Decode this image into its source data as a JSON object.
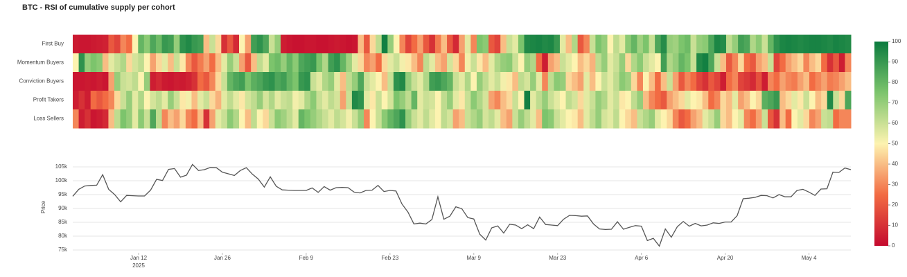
{
  "title": "BTC - RSI of cumulative supply per cohort",
  "chart_data": [
    {
      "type": "heatmap",
      "y": [
        "First Buy",
        "Momentum Buyers",
        "Conviction Buyers",
        "Profit Takers",
        "Loss Sellers"
      ],
      "colors": [
        "#c40a2e",
        "#f26b43",
        "#fdf3b0",
        "#7cc46c",
        "#0a7a3e"
      ],
      "zlim": [
        0,
        100
      ],
      "zticks": [
        0,
        10,
        20,
        30,
        40,
        50,
        60,
        70,
        80,
        90,
        100
      ],
      "z": [
        [
          4,
          3,
          3,
          4,
          5,
          6,
          20,
          15,
          30,
          25,
          50,
          80,
          72,
          85,
          78,
          90,
          88,
          70,
          92,
          95,
          90,
          88,
          40,
          60,
          45,
          10,
          20,
          8,
          50,
          35,
          88,
          92,
          85,
          60,
          70,
          5,
          3,
          2,
          2,
          3,
          3,
          2,
          2,
          3,
          4,
          3,
          2,
          3,
          40,
          20,
          45,
          62,
          98,
          70,
          50,
          30,
          15,
          25,
          35,
          20,
          10,
          28,
          40,
          20,
          8,
          35,
          55,
          30,
          75,
          72,
          20,
          15,
          40,
          60,
          55,
          75,
          95,
          96,
          97,
          95,
          96,
          90,
          55,
          40,
          65,
          20,
          30,
          60,
          75,
          70,
          50,
          62,
          55,
          72,
          80,
          68,
          75,
          60,
          85,
          94,
          70,
          68,
          75,
          78,
          60,
          70,
          72,
          85,
          96,
          94,
          62,
          70,
          88,
          85,
          65,
          72,
          60,
          80,
          92,
          96,
          97,
          96,
          95,
          96,
          97,
          97,
          96,
          95,
          97,
          96,
          95
        ],
        [
          50,
          92,
          70,
          75,
          72,
          40,
          55,
          60,
          65,
          45,
          58,
          62,
          50,
          35,
          45,
          55,
          40,
          60,
          48,
          30,
          20,
          28,
          35,
          25,
          40,
          55,
          70,
          60,
          35,
          20,
          40,
          62,
          55,
          75,
          78,
          70,
          80,
          72,
          85,
          88,
          90,
          75,
          65,
          88,
          92,
          80,
          68,
          55,
          45,
          30,
          35,
          25,
          45,
          55,
          60,
          52,
          48,
          40,
          30,
          62,
          55,
          40,
          35,
          58,
          45,
          30,
          52,
          60,
          48,
          40,
          55,
          65,
          70,
          72,
          60,
          50,
          70,
          65,
          25,
          5,
          35,
          40,
          60,
          55,
          50,
          40,
          45,
          38,
          62,
          70,
          55,
          60,
          70,
          45,
          65,
          72,
          60,
          55,
          50,
          88,
          65,
          70,
          80,
          75,
          60,
          95,
          98,
          85,
          60,
          40,
          20,
          30,
          45,
          25,
          20,
          35,
          40,
          60,
          15,
          25,
          35,
          40,
          45,
          30,
          40,
          45,
          25,
          10,
          20,
          5,
          30
        ],
        [
          3,
          3,
          4,
          3,
          5,
          3,
          35,
          70,
          60,
          58,
          62,
          50,
          70,
          5,
          8,
          4,
          3,
          5,
          4,
          6,
          10,
          25,
          20,
          30,
          45,
          60,
          80,
          85,
          88,
          75,
          82,
          85,
          90,
          92,
          85,
          88,
          80,
          75,
          90,
          92,
          60,
          55,
          65,
          70,
          55,
          40,
          62,
          70,
          85,
          60,
          55,
          50,
          40,
          60,
          92,
          95,
          70,
          60,
          55,
          65,
          88,
          90,
          85,
          80,
          60,
          55,
          65,
          50,
          70,
          62,
          55,
          60,
          52,
          48,
          40,
          62,
          58,
          70,
          55,
          30,
          62,
          72,
          70,
          45,
          40,
          35,
          55,
          40,
          50,
          60,
          55,
          62,
          72,
          68,
          45,
          30,
          50,
          40,
          25,
          40,
          60,
          35,
          20,
          30,
          25,
          15,
          10,
          20,
          15,
          5,
          25,
          30,
          15,
          12,
          8,
          18,
          5,
          30,
          25,
          35,
          30,
          28,
          35,
          40,
          25,
          30,
          35,
          28,
          30,
          35,
          40
        ],
        [
          5,
          10,
          5,
          25,
          20,
          25,
          30,
          45,
          60,
          70,
          55,
          65,
          50,
          58,
          62,
          55,
          70,
          60,
          48,
          52,
          40,
          55,
          60,
          45,
          38,
          55,
          62,
          55,
          48,
          58,
          62,
          70,
          58,
          65,
          55,
          60,
          62,
          52,
          55,
          65,
          72,
          60,
          55,
          62,
          58,
          35,
          60,
          95,
          92,
          55,
          48,
          60,
          50,
          58,
          75,
          70,
          62,
          80,
          55,
          60,
          58,
          50,
          62,
          70,
          55,
          48,
          60,
          72,
          65,
          58,
          35,
          30,
          40,
          45,
          60,
          50,
          98,
          55,
          62,
          70,
          60,
          55,
          50,
          62,
          58,
          45,
          55,
          60,
          70,
          65,
          55,
          60,
          48,
          50,
          62,
          70,
          40,
          30,
          25,
          20,
          35,
          40,
          45,
          55,
          50,
          48,
          40,
          25,
          30,
          45,
          40,
          55,
          35,
          40,
          50,
          45,
          82,
          85,
          90,
          40,
          45,
          55,
          48,
          60,
          50,
          40,
          45,
          95,
          60,
          45,
          85
        ],
        [
          30,
          5,
          10,
          3,
          5,
          8,
          40,
          62,
          75,
          70,
          55,
          72,
          60,
          85,
          62,
          30,
          40,
          35,
          45,
          30,
          25,
          40,
          10,
          35,
          55,
          60,
          72,
          65,
          50,
          40,
          62,
          50,
          45,
          60,
          72,
          68,
          62,
          55,
          80,
          75,
          70,
          65,
          60,
          55,
          62,
          58,
          52,
          60,
          70,
          30,
          50,
          60,
          72,
          80,
          85,
          92,
          70,
          60,
          55,
          62,
          55,
          50,
          62,
          58,
          35,
          40,
          60,
          65,
          70,
          58,
          62,
          55,
          40,
          35,
          60,
          70,
          62,
          55,
          40,
          75,
          72,
          60,
          55,
          50,
          48,
          40,
          55,
          62,
          70,
          58,
          55,
          62,
          50,
          45,
          40,
          60,
          65,
          70,
          55,
          50,
          45,
          30,
          20,
          25,
          35,
          40,
          55,
          60,
          70,
          45,
          40,
          50,
          55,
          30,
          25,
          35,
          60,
          20,
          10,
          40,
          25,
          50,
          55,
          45,
          30,
          35,
          60,
          62,
          25,
          30,
          30
        ]
      ]
    },
    {
      "type": "line",
      "y_label": "Price",
      "color": "#555555",
      "grid": true,
      "ylim": [
        74000,
        107000
      ],
      "yticks": [
        {
          "value": 75000,
          "label": "75k"
        },
        {
          "value": 80000,
          "label": "80k"
        },
        {
          "value": 85000,
          "label": "85k"
        },
        {
          "value": 90000,
          "label": "90k"
        },
        {
          "value": 95000,
          "label": "95k"
        },
        {
          "value": 100000,
          "label": "100k"
        },
        {
          "value": 105000,
          "label": "105k"
        }
      ],
      "xlim": [
        "2025-01-01",
        "2025-05-11"
      ],
      "xticks": [
        {
          "value": "2025-01-12",
          "label": "Jan 12"
        },
        {
          "value": "2025-01-26",
          "label": "Jan 26"
        },
        {
          "value": "2025-02-09",
          "label": "Feb 9"
        },
        {
          "value": "2025-02-23",
          "label": "Feb 23"
        },
        {
          "value": "2025-03-09",
          "label": "Mar 9"
        },
        {
          "value": "2025-03-23",
          "label": "Mar 23"
        },
        {
          "value": "2025-04-06",
          "label": "Apr 6"
        },
        {
          "value": "2025-04-20",
          "label": "Apr 20"
        },
        {
          "value": "2025-05-04",
          "label": "May 4"
        }
      ],
      "year_label": "2025",
      "x": [
        "2025-01-01",
        "2025-01-02",
        "2025-01-03",
        "2025-01-04",
        "2025-01-05",
        "2025-01-06",
        "2025-01-07",
        "2025-01-08",
        "2025-01-09",
        "2025-01-10",
        "2025-01-11",
        "2025-01-12",
        "2025-01-13",
        "2025-01-14",
        "2025-01-15",
        "2025-01-16",
        "2025-01-17",
        "2025-01-18",
        "2025-01-19",
        "2025-01-20",
        "2025-01-21",
        "2025-01-22",
        "2025-01-23",
        "2025-01-24",
        "2025-01-25",
        "2025-01-26",
        "2025-01-27",
        "2025-01-28",
        "2025-01-29",
        "2025-01-30",
        "2025-01-31",
        "2025-02-01",
        "2025-02-02",
        "2025-02-03",
        "2025-02-04",
        "2025-02-05",
        "2025-02-06",
        "2025-02-07",
        "2025-02-08",
        "2025-02-09",
        "2025-02-10",
        "2025-02-11",
        "2025-02-12",
        "2025-02-13",
        "2025-02-14",
        "2025-02-15",
        "2025-02-16",
        "2025-02-17",
        "2025-02-18",
        "2025-02-19",
        "2025-02-20",
        "2025-02-21",
        "2025-02-22",
        "2025-02-23",
        "2025-02-24",
        "2025-02-25",
        "2025-02-26",
        "2025-02-27",
        "2025-02-28",
        "2025-03-01",
        "2025-03-02",
        "2025-03-03",
        "2025-03-04",
        "2025-03-05",
        "2025-03-06",
        "2025-03-07",
        "2025-03-08",
        "2025-03-09",
        "2025-03-10",
        "2025-03-11",
        "2025-03-12",
        "2025-03-13",
        "2025-03-14",
        "2025-03-15",
        "2025-03-16",
        "2025-03-17",
        "2025-03-18",
        "2025-03-19",
        "2025-03-20",
        "2025-03-21",
        "2025-03-22",
        "2025-03-23",
        "2025-03-24",
        "2025-03-25",
        "2025-03-26",
        "2025-03-27",
        "2025-03-28",
        "2025-03-29",
        "2025-03-30",
        "2025-03-31",
        "2025-04-01",
        "2025-04-02",
        "2025-04-03",
        "2025-04-04",
        "2025-04-05",
        "2025-04-06",
        "2025-04-07",
        "2025-04-08",
        "2025-04-09",
        "2025-04-10",
        "2025-04-11",
        "2025-04-12",
        "2025-04-13",
        "2025-04-14",
        "2025-04-15",
        "2025-04-16",
        "2025-04-17",
        "2025-04-18",
        "2025-04-19",
        "2025-04-20",
        "2025-04-21",
        "2025-04-22",
        "2025-04-23",
        "2025-04-24",
        "2025-04-25",
        "2025-04-26",
        "2025-04-27",
        "2025-04-28",
        "2025-04-29",
        "2025-04-30",
        "2025-05-01",
        "2025-05-02",
        "2025-05-03",
        "2025-05-04",
        "2025-05-05",
        "2025-05-06",
        "2025-05-07",
        "2025-05-08",
        "2025-05-09",
        "2025-05-10",
        "2025-05-11"
      ],
      "values": [
        94400,
        96900,
        98100,
        98300,
        98400,
        102200,
        96900,
        95000,
        92400,
        94700,
        94600,
        94500,
        94500,
        96600,
        100500,
        100100,
        104100,
        104400,
        101300,
        102000,
        105900,
        103700,
        104000,
        104800,
        104700,
        103100,
        102500,
        101900,
        103700,
        104700,
        102400,
        100600,
        97700,
        101400,
        98000,
        96700,
        96600,
        96500,
        96500,
        96500,
        97400,
        95800,
        97900,
        96600,
        97500,
        97600,
        97500,
        95900,
        95600,
        96500,
        96600,
        98300,
        96100,
        96500,
        96300,
        91600,
        88700,
        84400,
        84700,
        84400,
        86000,
        94200,
        86100,
        87200,
        90600,
        89900,
        86700,
        86200,
        80700,
        78600,
        83000,
        83700,
        81100,
        84300,
        84000,
        82700,
        84100,
        82700,
        86900,
        84200,
        84000,
        83800,
        86100,
        87500,
        87400,
        87200,
        87300,
        84400,
        82600,
        82400,
        82500,
        85200,
        82500,
        83200,
        83800,
        83600,
        78400,
        79200,
        76400,
        82600,
        79600,
        83400,
        85300,
        83600,
        84600,
        83700,
        84000,
        84800,
        84600,
        85100,
        85100,
        87400,
        93500,
        93700,
        94000,
        94700,
        94600,
        93800,
        95000,
        94200,
        94200,
        96500,
        96900,
        95900,
        94700,
        97000,
        97100,
        103100,
        103000,
        104600,
        104000
      ]
    }
  ]
}
